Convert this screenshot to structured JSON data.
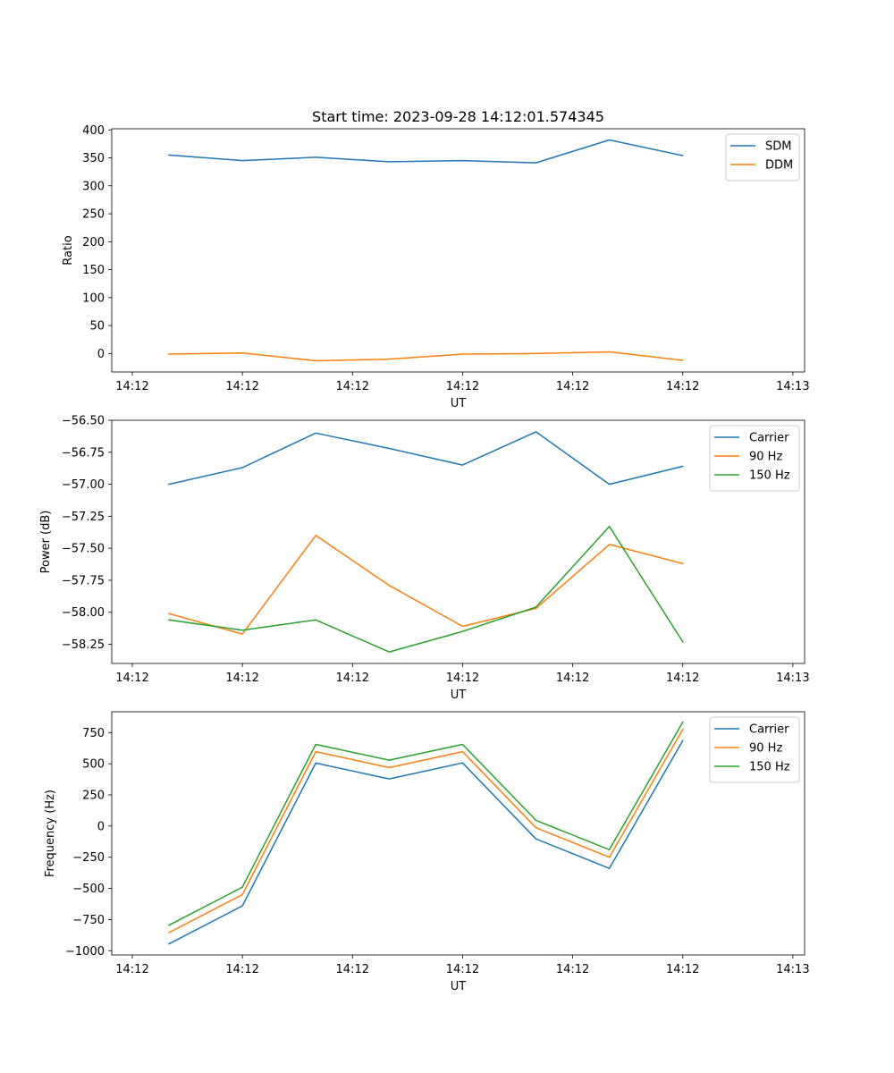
{
  "figure": {
    "title": "Start time: 2023-09-28 14:12:01.574345"
  },
  "colors": {
    "blue": "#1f77b4",
    "orange": "#ff7f0e",
    "green": "#2ca02c"
  },
  "chart_data": [
    {
      "type": "line",
      "title": "Start time: 2023-09-28 14:12:01.574345",
      "xlabel": "UT",
      "ylabel": "Ratio",
      "x": [
        1,
        2,
        3,
        4,
        5,
        6,
        7,
        8
      ],
      "xlim": [
        0.22,
        9.66
      ],
      "xticks": [
        0.5,
        2,
        3.5,
        5,
        6.5,
        8,
        9.5
      ],
      "xtick_labels": [
        "14:12",
        "14:12",
        "14:12",
        "14:12",
        "14:12",
        "14:12",
        "14:13"
      ],
      "ylim": [
        -33,
        402
      ],
      "yticks": [
        0,
        50,
        100,
        150,
        200,
        250,
        300,
        350,
        400
      ],
      "ytick_labels": [
        "0",
        "50",
        "100",
        "150",
        "200",
        "250",
        "300",
        "350",
        "400"
      ],
      "legend_position": "upper-right",
      "series": [
        {
          "name": "SDM",
          "color": "#1f77b4",
          "values": [
            355,
            345,
            351,
            343,
            345,
            341,
            382,
            354
          ]
        },
        {
          "name": "DDM",
          "color": "#ff7f0e",
          "values": [
            -1,
            1,
            -13,
            -10,
            -1,
            0,
            3,
            -12
          ]
        }
      ]
    },
    {
      "type": "line",
      "title": "",
      "xlabel": "UT",
      "ylabel": "Power (dB)",
      "x": [
        1,
        2,
        3,
        4,
        5,
        6,
        7,
        8
      ],
      "xlim": [
        0.22,
        9.66
      ],
      "xticks": [
        0.5,
        2,
        3.5,
        5,
        6.5,
        8,
        9.5
      ],
      "xtick_labels": [
        "14:12",
        "14:12",
        "14:12",
        "14:12",
        "14:12",
        "14:12",
        "14:13"
      ],
      "ylim": [
        -58.4,
        -56.5
      ],
      "yticks": [
        -58.25,
        -58.0,
        -57.75,
        -57.5,
        -57.25,
        -57.0,
        -56.75,
        -56.5
      ],
      "ytick_labels": [
        "−58.25",
        "−58.00",
        "−57.75",
        "−57.50",
        "−57.25",
        "−57.00",
        "−56.75",
        "−56.50"
      ],
      "legend_position": "upper-right",
      "series": [
        {
          "name": "Carrier",
          "color": "#1f77b4",
          "values": [
            -57.0,
            -56.87,
            -56.6,
            -56.72,
            -56.85,
            -56.59,
            -57.0,
            -56.86
          ]
        },
        {
          "name": "90 Hz",
          "color": "#ff7f0e",
          "values": [
            -58.01,
            -58.17,
            -57.4,
            -57.79,
            -58.11,
            -57.97,
            -57.47,
            -57.62
          ]
        },
        {
          "name": "150 Hz",
          "color": "#2ca02c",
          "values": [
            -58.06,
            -58.14,
            -58.06,
            -58.31,
            -58.15,
            -57.96,
            -57.33,
            -58.23
          ]
        }
      ]
    },
    {
      "type": "line",
      "title": "",
      "xlabel": "UT",
      "ylabel": "Frequency (Hz)",
      "x": [
        1,
        2,
        3,
        4,
        5,
        6,
        7,
        8
      ],
      "xlim": [
        0.22,
        9.66
      ],
      "xticks": [
        0.5,
        2,
        3.5,
        5,
        6.5,
        8,
        9.5
      ],
      "xtick_labels": [
        "14:12",
        "14:12",
        "14:12",
        "14:12",
        "14:12",
        "14:12",
        "14:13"
      ],
      "ylim": [
        -1034,
        917
      ],
      "yticks": [
        -1000,
        -750,
        -500,
        -250,
        0,
        250,
        500,
        750
      ],
      "ytick_labels": [
        "−1000",
        "−750",
        "−500",
        "−250",
        "0",
        "250",
        "500",
        "750"
      ],
      "legend_position": "upper-right",
      "series": [
        {
          "name": "Carrier",
          "color": "#1f77b4",
          "values": [
            -945,
            -640,
            505,
            378,
            507,
            -103,
            -340,
            685
          ]
        },
        {
          "name": "90 Hz",
          "color": "#ff7f0e",
          "values": [
            -855,
            -550,
            597,
            469,
            597,
            -13,
            -250,
            775
          ]
        },
        {
          "name": "150 Hz",
          "color": "#2ca02c",
          "values": [
            -795,
            -490,
            655,
            529,
            655,
            46,
            -190,
            833
          ]
        }
      ]
    }
  ]
}
